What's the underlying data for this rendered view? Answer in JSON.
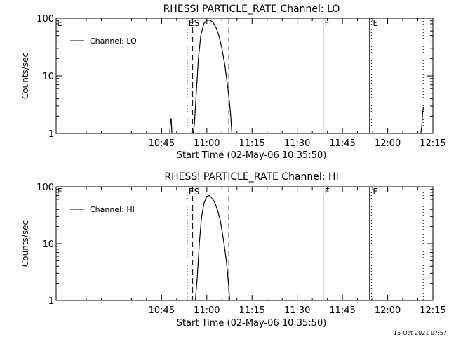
{
  "footer_timestamp": "15-Oct-2021 07:57",
  "chart_data": [
    {
      "type": "line",
      "title": "RHESSI PARTICLE_RATE Channel: LO",
      "xlabel": "Start Time (02-May-06 10:35:50)",
      "ylabel": "Counts/sec",
      "y_scale": "log",
      "ylim": [
        1,
        100
      ],
      "xlim_minutes": [
        -50,
        75
      ],
      "x_ticks": [
        {
          "t": -15,
          "label": "10:45"
        },
        {
          "t": 0,
          "label": "11:00"
        },
        {
          "t": 15,
          "label": "11:15"
        },
        {
          "t": 30,
          "label": "11:30"
        },
        {
          "t": 45,
          "label": "11:45"
        },
        {
          "t": 60,
          "label": "12:00"
        },
        {
          "t": 75,
          "label": "12:15"
        }
      ],
      "y_ticks": [
        {
          "v": 1,
          "label": "1"
        },
        {
          "v": 10,
          "label": "10"
        },
        {
          "v": 100,
          "label": "100"
        }
      ],
      "legend": {
        "label": "Channel: LO",
        "position": "top-left"
      },
      "event_markers": [
        {
          "t": -6.5,
          "style": "dotted",
          "label": "E"
        },
        {
          "t": -4.7,
          "style": "dashed",
          "label": "S"
        },
        {
          "t": 7.3,
          "style": "dashed",
          "label": ""
        },
        {
          "t": 38.6,
          "style": "solid",
          "label": "F"
        },
        {
          "t": 54.0,
          "style": "solid",
          "label": ""
        },
        {
          "t": 54.6,
          "style": "dotted",
          "label": "E"
        },
        {
          "t": 71.8,
          "style": "dotted",
          "label": ""
        }
      ],
      "series": [
        {
          "name": "Channel: LO",
          "segments": [
            [
              {
                "t": -12.3,
                "v": 1.0
              },
              {
                "t": -12.0,
                "v": 1.8
              },
              {
                "t": -11.8,
                "v": 1.8
              },
              {
                "t": -11.6,
                "v": 1.0
              }
            ],
            [
              {
                "t": -4.5,
                "v": 1.0
              },
              {
                "t": -4.1,
                "v": 1.5
              },
              {
                "t": -3.5,
                "v": 5
              },
              {
                "t": -2.8,
                "v": 20
              },
              {
                "t": -2.0,
                "v": 50
              },
              {
                "t": -1.0,
                "v": 80
              },
              {
                "t": 0.0,
                "v": 92
              },
              {
                "t": 1.0,
                "v": 93
              },
              {
                "t": 2.0,
                "v": 85
              },
              {
                "t": 3.0,
                "v": 70
              },
              {
                "t": 4.0,
                "v": 50
              },
              {
                "t": 5.0,
                "v": 30
              },
              {
                "t": 6.0,
                "v": 15
              },
              {
                "t": 7.0,
                "v": 6
              },
              {
                "t": 7.8,
                "v": 2.5
              },
              {
                "t": 8.3,
                "v": 1.0
              }
            ],
            [
              {
                "t": 71.0,
                "v": 1.0
              },
              {
                "t": 71.3,
                "v": 1.3
              },
              {
                "t": 71.6,
                "v": 2.3
              },
              {
                "t": 71.9,
                "v": 2.9
              }
            ]
          ]
        }
      ]
    },
    {
      "type": "line",
      "title": "RHESSI PARTICLE_RATE Channel: HI",
      "xlabel": "Start Time (02-May-06 10:35:50)",
      "ylabel": "Counts/sec",
      "y_scale": "log",
      "ylim": [
        1,
        100
      ],
      "xlim_minutes": [
        -50,
        75
      ],
      "x_ticks": [
        {
          "t": -15,
          "label": "10:45"
        },
        {
          "t": 0,
          "label": "11:00"
        },
        {
          "t": 15,
          "label": "11:15"
        },
        {
          "t": 30,
          "label": "11:30"
        },
        {
          "t": 45,
          "label": "11:45"
        },
        {
          "t": 60,
          "label": "12:00"
        },
        {
          "t": 75,
          "label": "12:15"
        }
      ],
      "y_ticks": [
        {
          "v": 1,
          "label": "1"
        },
        {
          "v": 10,
          "label": "10"
        },
        {
          "v": 100,
          "label": "100"
        }
      ],
      "legend": {
        "label": "Channel: HI",
        "position": "top-left"
      },
      "event_markers": [
        {
          "t": -6.5,
          "style": "dotted",
          "label": "E"
        },
        {
          "t": -4.7,
          "style": "dashed",
          "label": "S"
        },
        {
          "t": 7.3,
          "style": "dashed",
          "label": ""
        },
        {
          "t": 38.6,
          "style": "solid",
          "label": "F"
        },
        {
          "t": 54.0,
          "style": "solid",
          "label": ""
        },
        {
          "t": 54.6,
          "style": "dotted",
          "label": "E"
        },
        {
          "t": 71.8,
          "style": "dotted",
          "label": ""
        }
      ],
      "series": [
        {
          "name": "Channel: HI",
          "segments": [
            [
              {
                "t": -3.8,
                "v": 1.0
              },
              {
                "t": -3.2,
                "v": 2.5
              },
              {
                "t": -2.5,
                "v": 10
              },
              {
                "t": -1.8,
                "v": 28
              },
              {
                "t": -1.0,
                "v": 50
              },
              {
                "t": 0.0,
                "v": 68
              },
              {
                "t": 0.8,
                "v": 70
              },
              {
                "t": 1.5,
                "v": 65
              },
              {
                "t": 2.5,
                "v": 55
              },
              {
                "t": 3.5,
                "v": 40
              },
              {
                "t": 4.5,
                "v": 25
              },
              {
                "t": 5.5,
                "v": 12
              },
              {
                "t": 6.5,
                "v": 5
              },
              {
                "t": 7.2,
                "v": 2
              },
              {
                "t": 7.6,
                "v": 1.0
              }
            ]
          ]
        }
      ]
    }
  ]
}
